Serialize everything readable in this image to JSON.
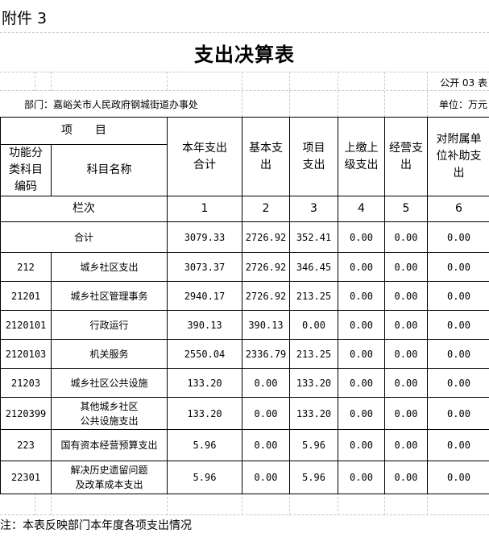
{
  "attachment": "附件 3",
  "title": "支出决算表",
  "table_no": "公开 03 表",
  "department": "部门：嘉峪关市人民政府钢城街道办事处",
  "unit": "单位：万元",
  "header": {
    "item": "项　　目",
    "code": "功能分类科目编码",
    "name": "科目名称",
    "columns": [
      "本年支出合计",
      "基本支出",
      "项目支出",
      "上缴上级支出",
      "经营支出",
      "对附属单位补助支出"
    ],
    "row_index_label": "栏次",
    "row_index": [
      "1",
      "2",
      "3",
      "4",
      "5",
      "6"
    ]
  },
  "total": {
    "label": "合计",
    "values": [
      "3079.33",
      "2726.92",
      "352.41",
      "0.00",
      "0.00",
      "0.00"
    ]
  },
  "rows": [
    {
      "code": "212",
      "name": "城乡社区支出",
      "values": [
        "3073.37",
        "2726.92",
        "346.45",
        "0.00",
        "0.00",
        "0.00"
      ]
    },
    {
      "code": "21201",
      "name": "城乡社区管理事务",
      "values": [
        "2940.17",
        "2726.92",
        "213.25",
        "0.00",
        "0.00",
        "0.00"
      ]
    },
    {
      "code": "2120101",
      "name": "行政运行",
      "values": [
        "390.13",
        "390.13",
        "0.00",
        "0.00",
        "0.00",
        "0.00"
      ]
    },
    {
      "code": "2120103",
      "name": "机关服务",
      "values": [
        "2550.04",
        "2336.79",
        "213.25",
        "0.00",
        "0.00",
        "0.00"
      ]
    },
    {
      "code": "21203",
      "name": "城乡社区公共设施",
      "values": [
        "133.20",
        "0.00",
        "133.20",
        "0.00",
        "0.00",
        "0.00"
      ]
    },
    {
      "code": "2120399",
      "name": "其他城乡社区\n公共设施支出",
      "values": [
        "133.20",
        "0.00",
        "133.20",
        "0.00",
        "0.00",
        "0.00"
      ]
    },
    {
      "code": "223",
      "name": "国有资本经营预算支出",
      "values": [
        "5.96",
        "0.00",
        "5.96",
        "0.00",
        "0.00",
        "0.00"
      ]
    },
    {
      "code": "22301",
      "name": "解决历史遗留问题\n及改革成本支出",
      "values": [
        "5.96",
        "0.00",
        "5.96",
        "0.00",
        "0.00",
        "0.00"
      ]
    }
  ],
  "note": "注：本表反映部门本年度各项支出情况"
}
